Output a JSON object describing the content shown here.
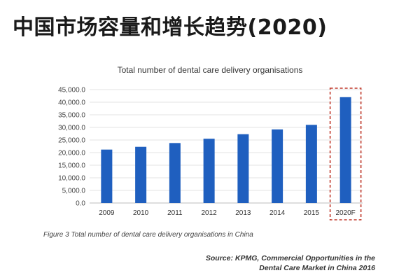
{
  "headline": "中国市场容量和增长趋势(2020)",
  "chart_data": {
    "type": "bar",
    "title": "Total number of dental care delivery organisations",
    "categories": [
      "2009",
      "2010",
      "2011",
      "2012",
      "2013",
      "2014",
      "2015",
      "2020F"
    ],
    "values": [
      21200,
      22300,
      23800,
      25500,
      27300,
      29200,
      31000,
      42000
    ],
    "y_ticks": [
      "0.0",
      "5,000.0",
      "10,000.0",
      "15,000.0",
      "20,000.0",
      "25,000.0",
      "30,000.0",
      "35,000.0",
      "40,000.0",
      "45,000.0"
    ],
    "ylim": [
      0,
      45000
    ],
    "xlabel": "",
    "ylabel": "",
    "grid": true,
    "bar_color": "#1f5fbf",
    "highlight_category": "2020F",
    "highlight_color": "#c0392b"
  },
  "caption": "Figure 3 Total number of dental care delivery organisations in China",
  "source": {
    "line1": "Source: KPMG, Commercial Opportunities in the",
    "line2": "Dental Care Market in China 2016"
  }
}
